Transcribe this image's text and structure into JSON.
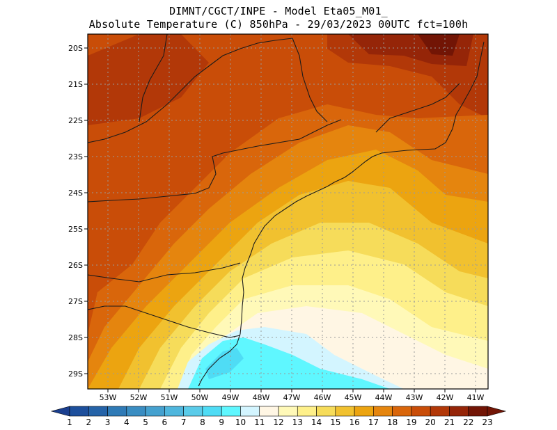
{
  "header": {
    "line1": "DIMNT/CGCT/INPE -  Model Eta05_M01_",
    "line2": "Absolute Temperature (C) 850hPa -  29/03/2023 00UTC fct=100h"
  },
  "map": {
    "lat_labels": [
      "20S",
      "21S",
      "22S",
      "23S",
      "24S",
      "25S",
      "26S",
      "27S",
      "28S",
      "29S"
    ],
    "lon_labels": [
      "53W",
      "52W",
      "51W",
      "50W",
      "49W",
      "48W",
      "47W",
      "46W",
      "45W",
      "44W",
      "43W",
      "42W",
      "41W"
    ]
  },
  "colorbar": {
    "labels": [
      "1",
      "2",
      "3",
      "4",
      "5",
      "6",
      "7",
      "8",
      "9",
      "10",
      "11",
      "12",
      "13",
      "14",
      "15",
      "16",
      "17",
      "18",
      "19",
      "20",
      "21",
      "22",
      "23"
    ],
    "colors": [
      "#1a3f8f",
      "#1d4f9c",
      "#2563a8",
      "#2f7ab6",
      "#3a8dc2",
      "#45a1cf",
      "#4fb6dd",
      "#5acbe9",
      "#4fdcf5",
      "#5ff7ff",
      "#d3f5ff",
      "#fff6e4",
      "#fff9b8",
      "#fef08a",
      "#f6dc5a",
      "#f1c12f",
      "#eca410",
      "#e5850e",
      "#d9660b",
      "#c94d08",
      "#b23808",
      "#952508",
      "#721505"
    ]
  }
}
